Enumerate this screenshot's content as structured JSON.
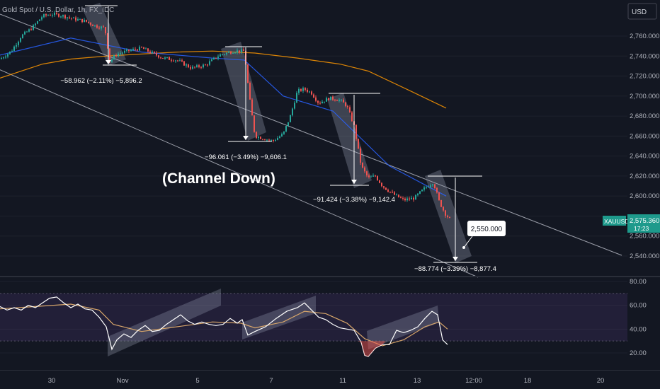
{
  "header": {
    "title": "Gold Spot / U.S. Dollar, 1h, FX_IDC"
  },
  "currency_button": "USD",
  "annotation": "(Channel Down)",
  "target_label": "2,550.000",
  "price_tag": {
    "symbol": "XAUUSD",
    "price": "2,575.360",
    "countdown": "17:23"
  },
  "measurements": [
    {
      "label": "−58.962 (−2.11%) −5,896.2"
    },
    {
      "label": "−96.061 (−3.49%) −9,606.1"
    },
    {
      "label": "−91.424 (−3.38%) −9,142.4"
    },
    {
      "label": "−88.774 (−3.39%) −8,877.4"
    }
  ],
  "colors": {
    "background": "#131722",
    "up": "#26a69a",
    "down": "#ef5350",
    "ma_fast": "#2962ff",
    "ma_slow": "#ff9800",
    "rsi": "#ffffff",
    "rsi_ma": "#d8a66a"
  },
  "chart_data": [
    {
      "type": "line",
      "chart_kind": "candlestick",
      "title": "Gold Spot / U.S. Dollar, 1h, FX_IDC",
      "y_ticks": [
        "2,540.000",
        "2,560.000",
        "2,580.000",
        "2,600.000",
        "2,620.000",
        "2,640.000",
        "2,660.000",
        "2,680.000",
        "2,700.000",
        "2,720.000",
        "2,740.000",
        "2,760.000"
      ],
      "ylim": [
        2530,
        2785
      ],
      "x_ticks": [
        "30",
        "Nov",
        "5",
        "7",
        "11",
        "13",
        "12:00",
        "18",
        "20"
      ],
      "series": [
        {
          "points": [
            [
              0,
              2737
            ],
            [
              16,
              2745
            ],
            [
              30,
              2760
            ],
            [
              45,
              2768
            ],
            [
              60,
              2780
            ],
            [
              75,
              2782
            ],
            [
              90,
              2780
            ],
            [
              105,
              2777
            ],
            [
              120,
              2775
            ],
            [
              135,
              2770
            ],
            [
              148,
              2768
            ],
            [
              155,
              2735
            ],
            [
              165,
              2742
            ],
            [
              180,
              2745
            ],
            [
              200,
              2748
            ],
            [
              215,
              2743
            ],
            [
              230,
              2738
            ],
            [
              250,
              2736
            ],
            [
              270,
              2728
            ],
            [
              290,
              2731
            ],
            [
              310,
              2741
            ],
            [
              330,
              2745
            ],
            [
              345,
              2745
            ],
            [
              352,
              2700
            ],
            [
              360,
              2660
            ],
            [
              370,
              2658
            ],
            [
              385,
              2655
            ],
            [
              400,
              2662
            ],
            [
              410,
              2680
            ],
            [
              420,
              2705
            ],
            [
              430,
              2707
            ],
            [
              440,
              2703
            ],
            [
              450,
              2693
            ],
            [
              465,
              2698
            ],
            [
              480,
              2696
            ],
            [
              490,
              2690
            ],
            [
              500,
              2670
            ],
            [
              510,
              2630
            ],
            [
              520,
              2618
            ],
            [
              530,
              2620
            ],
            [
              540,
              2610
            ],
            [
              555,
              2602
            ],
            [
              570,
              2596
            ],
            [
              585,
              2598
            ],
            [
              600,
              2608
            ],
            [
              612,
              2614
            ],
            [
              620,
              2595
            ],
            [
              628,
              2583
            ],
            [
              636,
              2576
            ]
          ]
        },
        {
          "name": "",
          "points": [
            [
              0,
              2741
            ],
            [
              100,
              2758
            ],
            [
              200,
              2744
            ],
            [
              300,
              2738
            ],
            [
              345,
              2736
            ],
            [
              400,
              2700
            ],
            [
              470,
              2685
            ],
            [
              550,
              2630
            ],
            [
              630,
              2600
            ]
          ]
        },
        {
          "name": "",
          "points": [
            [
              0,
              2718
            ],
            [
              60,
              2732
            ],
            [
              100,
              2737
            ],
            [
              150,
              2740
            ],
            [
              200,
              2742
            ],
            [
              250,
              2744
            ],
            [
              300,
              2745
            ],
            [
              360,
              2743
            ],
            [
              420,
              2738
            ],
            [
              480,
              2732
            ],
            [
              520,
              2725
            ],
            [
              580,
              2705
            ],
            [
              630,
              2688
            ]
          ]
        }
      ]
    },
    {
      "type": "line",
      "chart_kind": "rsi",
      "y_ticks": [
        "20.00",
        "40.00",
        "60.00",
        "80.00"
      ],
      "ylim": [
        10,
        80
      ],
      "band": [
        30,
        70
      ],
      "series": [
        {
          "name": "",
          "points": [
            [
              0,
              59
            ],
            [
              10,
              56
            ],
            [
              20,
              58
            ],
            [
              30,
              56
            ],
            [
              40,
              60
            ],
            [
              50,
              58
            ],
            [
              60,
              62
            ],
            [
              70,
              66
            ],
            [
              80,
              67
            ],
            [
              90,
              62
            ],
            [
              100,
              58
            ],
            [
              110,
              61
            ],
            [
              120,
              57
            ],
            [
              130,
              56
            ],
            [
              140,
              50
            ],
            [
              150,
              42
            ],
            [
              158,
              23
            ],
            [
              165,
              31
            ],
            [
              175,
              36
            ],
            [
              185,
              33
            ],
            [
              195,
              39
            ],
            [
              205,
              43
            ],
            [
              215,
              38
            ],
            [
              225,
              39
            ],
            [
              235,
              44
            ],
            [
              245,
              48
            ],
            [
              255,
              52
            ],
            [
              265,
              47
            ],
            [
              275,
              44
            ],
            [
              285,
              46
            ],
            [
              295,
              44
            ],
            [
              305,
              43
            ],
            [
              315,
              44
            ],
            [
              325,
              49
            ],
            [
              335,
              45
            ],
            [
              342,
              48
            ],
            [
              350,
              35
            ],
            [
              360,
              38
            ],
            [
              375,
              42
            ],
            [
              390,
              49
            ],
            [
              405,
              55
            ],
            [
              420,
              58
            ],
            [
              430,
              62
            ],
            [
              440,
              56
            ],
            [
              450,
              50
            ],
            [
              460,
              48
            ],
            [
              470,
              44
            ],
            [
              480,
              41
            ],
            [
              490,
              40
            ],
            [
              500,
              39
            ],
            [
              510,
              29
            ],
            [
              515,
              18
            ],
            [
              520,
              17
            ],
            [
              530,
              24
            ],
            [
              540,
              27
            ],
            [
              550,
              27
            ],
            [
              560,
              39
            ],
            [
              570,
              37
            ],
            [
              580,
              39
            ],
            [
              590,
              42
            ],
            [
              600,
              49
            ],
            [
              610,
              55
            ],
            [
              618,
              52
            ],
            [
              625,
              31
            ],
            [
              632,
              27
            ]
          ]
        },
        {
          "name": "",
          "points": [
            [
              0,
              57
            ],
            [
              50,
              59
            ],
            [
              100,
              61
            ],
            [
              140,
              56
            ],
            [
              160,
              44
            ],
            [
              200,
              38
            ],
            [
              250,
              42
            ],
            [
              300,
              46
            ],
            [
              340,
              45
            ],
            [
              360,
              41
            ],
            [
              400,
              46
            ],
            [
              430,
              55
            ],
            [
              460,
              53
            ],
            [
              490,
              45
            ],
            [
              515,
              32
            ],
            [
              540,
              26
            ],
            [
              570,
              31
            ],
            [
              600,
              42
            ],
            [
              620,
              46
            ],
            [
              632,
              40
            ]
          ]
        }
      ]
    }
  ]
}
